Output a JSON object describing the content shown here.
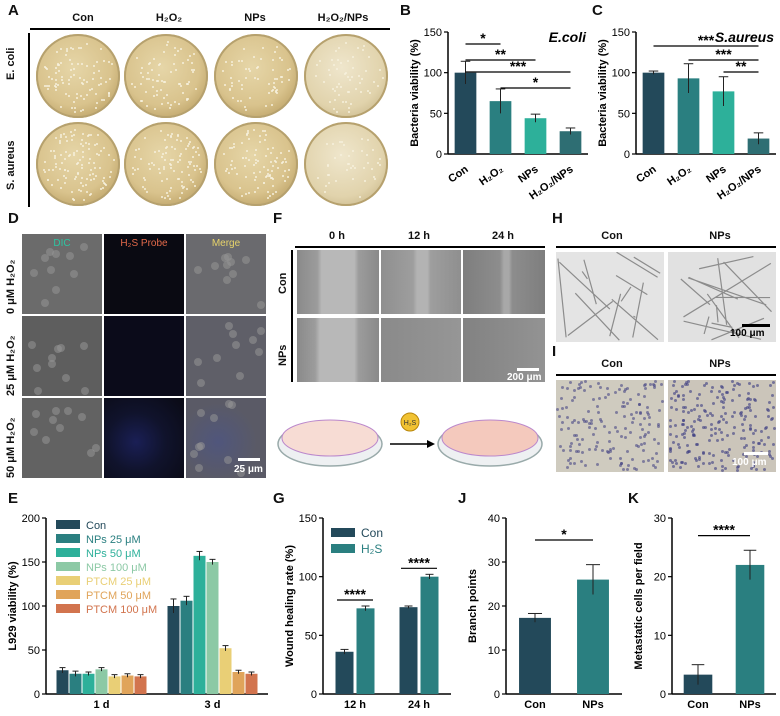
{
  "panels": {
    "A": {
      "label": "A",
      "columns": [
        "Con",
        "H₂O₂",
        "NPs",
        "H₂O₂/NPs"
      ],
      "rows": [
        "E. coli",
        "S. aureus"
      ]
    },
    "D": {
      "label": "D",
      "columns": [
        "DIC",
        "H₂S Probe",
        "Merge"
      ],
      "rows": [
        "0 μM H₂O₂",
        "25 μM H₂O₂",
        "50 μM H₂O₂"
      ],
      "scale": "25 μm"
    },
    "F": {
      "label": "F",
      "columns": [
        "0 h",
        "12 h",
        "24 h"
      ],
      "rows": [
        "Con",
        "NPs"
      ],
      "scale": "200 μm",
      "schematic_badge": "H₂S"
    },
    "H": {
      "label": "H",
      "columns": [
        "Con",
        "NPs"
      ],
      "scale": "100 μm"
    },
    "I": {
      "label": "I",
      "columns": [
        "Con",
        "NPs"
      ],
      "scale": "100 μm"
    }
  },
  "chart_data": [
    {
      "id": "B",
      "type": "bar",
      "title": "E.coli",
      "ylabel": "Bacteria viability (%)",
      "categories": [
        "Con",
        "H₂O₂",
        "NPs",
        "H₂O₂/NPs"
      ],
      "values": [
        100,
        65,
        44,
        28
      ],
      "errors": [
        14,
        15,
        5,
        4
      ],
      "ylim": [
        0,
        150
      ],
      "yticks": [
        0,
        50,
        100,
        150
      ],
      "colors": [
        "#23495a",
        "#2a7f80",
        "#2db09a",
        "#2e6e73"
      ],
      "significance": [
        {
          "from": 0,
          "to": 1,
          "label": "*"
        },
        {
          "from": 0,
          "to": 2,
          "label": "**"
        },
        {
          "from": 0,
          "to": 3,
          "label": "***"
        },
        {
          "from": 1,
          "to": 3,
          "label": "*"
        }
      ]
    },
    {
      "id": "C",
      "type": "bar",
      "title": "S.aureus",
      "ylabel": "Bacteria viability (%)",
      "categories": [
        "Con",
        "H₂O₂",
        "NPs",
        "H₂O₂/NPs"
      ],
      "values": [
        100,
        93,
        77,
        19
      ],
      "errors": [
        2,
        18,
        18,
        7
      ],
      "ylim": [
        0,
        150
      ],
      "yticks": [
        0,
        50,
        100,
        150
      ],
      "colors": [
        "#23495a",
        "#2a7f80",
        "#2db09a",
        "#2e6e73"
      ],
      "significance": [
        {
          "from": 0,
          "to": 3,
          "label": "***"
        },
        {
          "from": 1,
          "to": 3,
          "label": "***"
        },
        {
          "from": 2,
          "to": 3,
          "label": "**"
        }
      ]
    },
    {
      "id": "E",
      "type": "bar",
      "ylabel": "L929 viability (%)",
      "categories": [
        "1 d",
        "3 d"
      ],
      "ylim": [
        0,
        200
      ],
      "yticks": [
        0,
        50,
        100,
        150,
        200
      ],
      "series": [
        {
          "name": "Con",
          "values": [
            27,
            100
          ],
          "errors": [
            3,
            8
          ],
          "color": "#23495a"
        },
        {
          "name": "NPs 25 μM",
          "values": [
            23,
            106
          ],
          "errors": [
            3,
            5
          ],
          "color": "#2a7f80"
        },
        {
          "name": "NPs 50 μM",
          "values": [
            23,
            157
          ],
          "errors": [
            2,
            5
          ],
          "color": "#2db09a"
        },
        {
          "name": "NPs 100 μM",
          "values": [
            28,
            150
          ],
          "errors": [
            2,
            3
          ],
          "color": "#8cc9a5"
        },
        {
          "name": "PTCM 25 μM",
          "values": [
            20,
            52
          ],
          "errors": [
            2,
            3
          ],
          "color": "#e9cf76"
        },
        {
          "name": "PTCM 50 μM",
          "values": [
            21,
            25
          ],
          "errors": [
            2,
            2
          ],
          "color": "#e0a45a"
        },
        {
          "name": "PTCM 100 μM",
          "values": [
            20,
            23
          ],
          "errors": [
            2,
            2
          ],
          "color": "#d2744e"
        }
      ]
    },
    {
      "id": "G",
      "type": "bar",
      "ylabel": "Wound healing rate (%)",
      "categories": [
        "12 h",
        "24 h"
      ],
      "ylim": [
        0,
        150
      ],
      "yticks": [
        0,
        50,
        100,
        150
      ],
      "series": [
        {
          "name": "Con",
          "values": [
            36,
            74
          ],
          "errors": [
            2,
            1
          ],
          "color": "#23495a"
        },
        {
          "name": "H₂S",
          "values": [
            73,
            100
          ],
          "errors": [
            2,
            2
          ],
          "color": "#2a7f80"
        }
      ],
      "significance": [
        {
          "group": 0,
          "label": "****"
        },
        {
          "group": 1,
          "label": "****"
        }
      ]
    },
    {
      "id": "J",
      "type": "bar",
      "ylabel": "Branch points",
      "categories": [
        "Con",
        "NPs"
      ],
      "values": [
        17.3,
        26
      ],
      "errors": [
        1,
        3.4
      ],
      "ylim": [
        0,
        40
      ],
      "yticks": [
        0,
        10,
        20,
        30,
        40
      ],
      "colors": [
        "#23495a",
        "#2a7f80"
      ],
      "significance": [
        {
          "from": 0,
          "to": 1,
          "label": "*"
        }
      ]
    },
    {
      "id": "K",
      "type": "bar",
      "ylabel": "Metastatic cells per field",
      "categories": [
        "Con",
        "NPs"
      ],
      "values": [
        3.3,
        22
      ],
      "errors": [
        1.7,
        2.5
      ],
      "ylim": [
        0,
        30
      ],
      "yticks": [
        0,
        10,
        20,
        30
      ],
      "colors": [
        "#23495a",
        "#2a7f80"
      ],
      "significance": [
        {
          "from": 0,
          "to": 1,
          "label": "****"
        }
      ]
    }
  ]
}
